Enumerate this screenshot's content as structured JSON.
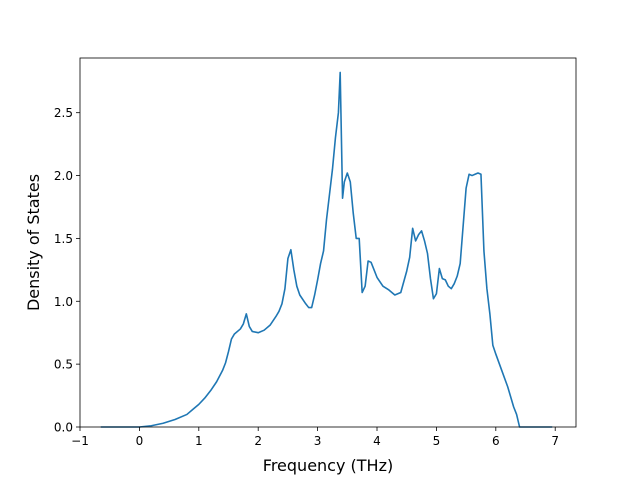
{
  "chart_data": {
    "type": "line",
    "title": "",
    "xlabel": "Frequency (THz)",
    "ylabel": "Density of States",
    "xlim": [
      -1,
      7.35
    ],
    "ylim": [
      0,
      2.5
    ],
    "ylim_display": [
      0,
      2.5
    ],
    "y_max_axis": 2.5,
    "x_ticks": [
      -1,
      0,
      1,
      2,
      3,
      4,
      5,
      6,
      7
    ],
    "x_tick_labels": [
      "−1",
      "0",
      "1",
      "2",
      "3",
      "4",
      "5",
      "6",
      "7"
    ],
    "y_ticks": [
      0.0,
      0.5,
      1.0,
      1.5,
      2.0,
      2.5
    ],
    "y_tick_labels": [
      "0.0",
      "0.5",
      "1.0",
      "1.5",
      "2.0",
      "2.5"
    ],
    "grid": false,
    "legend": "none",
    "series": [
      {
        "color": "#1f77b4",
        "x": [
          -0.65,
          -0.2,
          0.0,
          0.2,
          0.4,
          0.6,
          0.8,
          0.9,
          1.0,
          1.1,
          1.2,
          1.3,
          1.4,
          1.45,
          1.5,
          1.55,
          1.6,
          1.7,
          1.75,
          1.8,
          1.85,
          1.9,
          2.0,
          2.1,
          2.2,
          2.3,
          2.35,
          2.4,
          2.45,
          2.5,
          2.55,
          2.6,
          2.65,
          2.7,
          2.8,
          2.85,
          2.9,
          2.95,
          3.0,
          3.05,
          3.1,
          3.15,
          3.2,
          3.25,
          3.3,
          3.35,
          3.38,
          3.42,
          3.45,
          3.5,
          3.55,
          3.6,
          3.65,
          3.7,
          3.75,
          3.8,
          3.85,
          3.9,
          3.95,
          4.0,
          4.1,
          4.2,
          4.3,
          4.4,
          4.5,
          4.55,
          4.6,
          4.65,
          4.7,
          4.75,
          4.8,
          4.85,
          4.9,
          4.95,
          5.0,
          5.05,
          5.1,
          5.15,
          5.2,
          5.25,
          5.3,
          5.35,
          5.4,
          5.45,
          5.5,
          5.55,
          5.6,
          5.65,
          5.7,
          5.75,
          5.8,
          5.85,
          5.9,
          5.95,
          6.0,
          6.1,
          6.2,
          6.3,
          6.35,
          6.4,
          6.6,
          6.95
        ],
        "y": [
          0.0,
          0.0,
          0.0,
          0.01,
          0.03,
          0.06,
          0.1,
          0.14,
          0.18,
          0.23,
          0.29,
          0.36,
          0.45,
          0.51,
          0.6,
          0.7,
          0.74,
          0.78,
          0.82,
          0.9,
          0.8,
          0.76,
          0.75,
          0.77,
          0.81,
          0.88,
          0.92,
          0.98,
          1.1,
          1.34,
          1.41,
          1.25,
          1.12,
          1.05,
          0.98,
          0.95,
          0.95,
          1.05,
          1.17,
          1.3,
          1.4,
          1.65,
          1.85,
          2.05,
          2.3,
          2.5,
          2.82,
          1.82,
          1.95,
          2.02,
          1.95,
          1.7,
          1.5,
          1.5,
          1.07,
          1.12,
          1.32,
          1.31,
          1.25,
          1.19,
          1.12,
          1.09,
          1.05,
          1.07,
          1.24,
          1.35,
          1.58,
          1.48,
          1.53,
          1.56,
          1.48,
          1.38,
          1.18,
          1.02,
          1.06,
          1.26,
          1.18,
          1.17,
          1.12,
          1.1,
          1.14,
          1.2,
          1.3,
          1.6,
          1.9,
          2.01,
          2.0,
          2.01,
          2.02,
          2.01,
          1.4,
          1.1,
          0.9,
          0.65,
          0.58,
          0.45,
          0.32,
          0.16,
          0.1,
          0.0,
          0.0,
          0.0
        ]
      }
    ]
  }
}
